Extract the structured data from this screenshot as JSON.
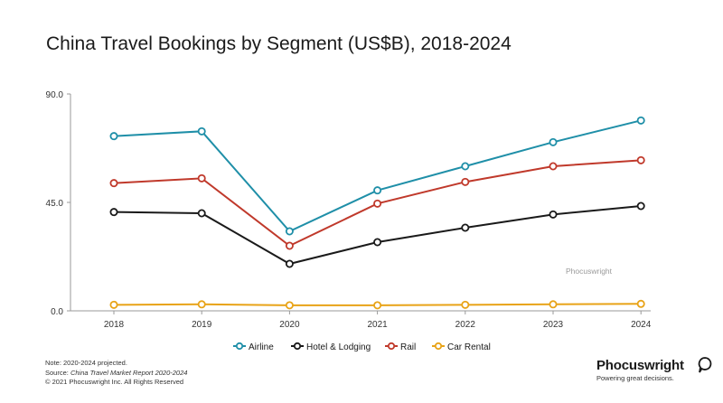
{
  "title": "China Travel Bookings by Segment (US$B), 2018-2024",
  "watermark": "Phocuswright",
  "notes": {
    "line1": "Note: 2020-2024 projected.",
    "source_prefix": "Source: ",
    "source_title": "China Travel Market Report 2020-2024",
    "copyright": "© 2021  Phocuswright Inc. All Rights Reserved"
  },
  "logo": {
    "brand": "Phocuswright",
    "tagline": "Powering great decisions.",
    "icon": "speech-bubble-icon"
  },
  "chart_data": {
    "type": "line",
    "categories": [
      "2018",
      "2019",
      "2020",
      "2021",
      "2022",
      "2023",
      "2024"
    ],
    "y_ticks": [
      "0.0",
      "45.0",
      "90.0"
    ],
    "ylim": [
      0,
      90
    ],
    "grid": false,
    "legend_position": "bottom",
    "series": [
      {
        "name": "Airline",
        "color": "#1f8fa8",
        "values": [
          72.5,
          74.5,
          33.0,
          50.0,
          60.0,
          70.0,
          79.0
        ]
      },
      {
        "name": "Hotel & Lodging",
        "color": "#1a1a1a",
        "values": [
          41.0,
          40.5,
          19.5,
          28.5,
          34.5,
          40.0,
          43.5
        ]
      },
      {
        "name": "Rail",
        "color": "#c0392b",
        "values": [
          53.0,
          55.0,
          27.0,
          44.5,
          53.5,
          60.0,
          62.5
        ]
      },
      {
        "name": "Car Rental",
        "color": "#e8a317",
        "values": [
          2.5,
          2.7,
          2.3,
          2.3,
          2.5,
          2.7,
          2.9
        ]
      }
    ]
  }
}
